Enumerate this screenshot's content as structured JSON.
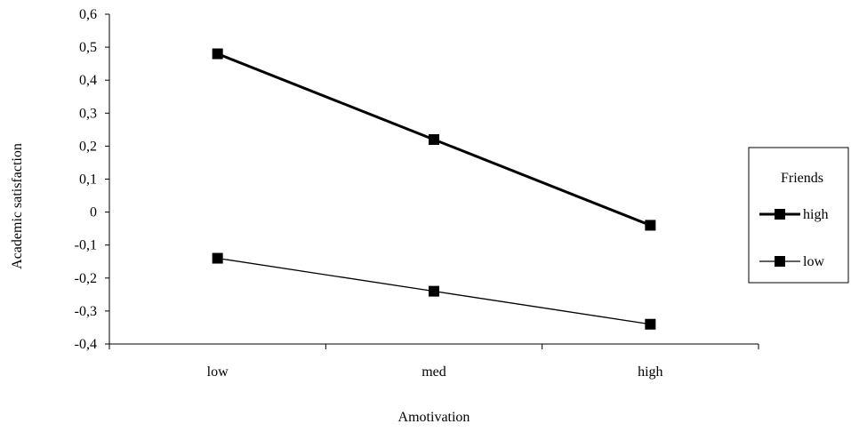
{
  "chart_data": {
    "type": "line",
    "title": "",
    "xlabel": "Amotivation",
    "ylabel": "Academic satisfaction",
    "categories": [
      "low",
      "med",
      "high"
    ],
    "ylim": [
      -0.4,
      0.6
    ],
    "yticks": [
      0.6,
      0.5,
      0.4,
      0.3,
      0.2,
      0.1,
      0,
      -0.1,
      -0.2,
      -0.3,
      -0.4
    ],
    "ytick_labels": [
      "0,6",
      "0,5",
      "0,4",
      "0,3",
      "0,2",
      "0,1",
      "0",
      "-0,1",
      "-0,2",
      "-0,3",
      "-0,4"
    ],
    "grid": false,
    "legend": {
      "title": "Friends",
      "placement": "right"
    },
    "series": [
      {
        "name": "high",
        "values": [
          0.48,
          0.22,
          -0.04
        ],
        "color": "#000000",
        "weight": "thick"
      },
      {
        "name": "low",
        "values": [
          -0.14,
          -0.24,
          -0.34
        ],
        "color": "#000000",
        "weight": "thin"
      }
    ]
  }
}
